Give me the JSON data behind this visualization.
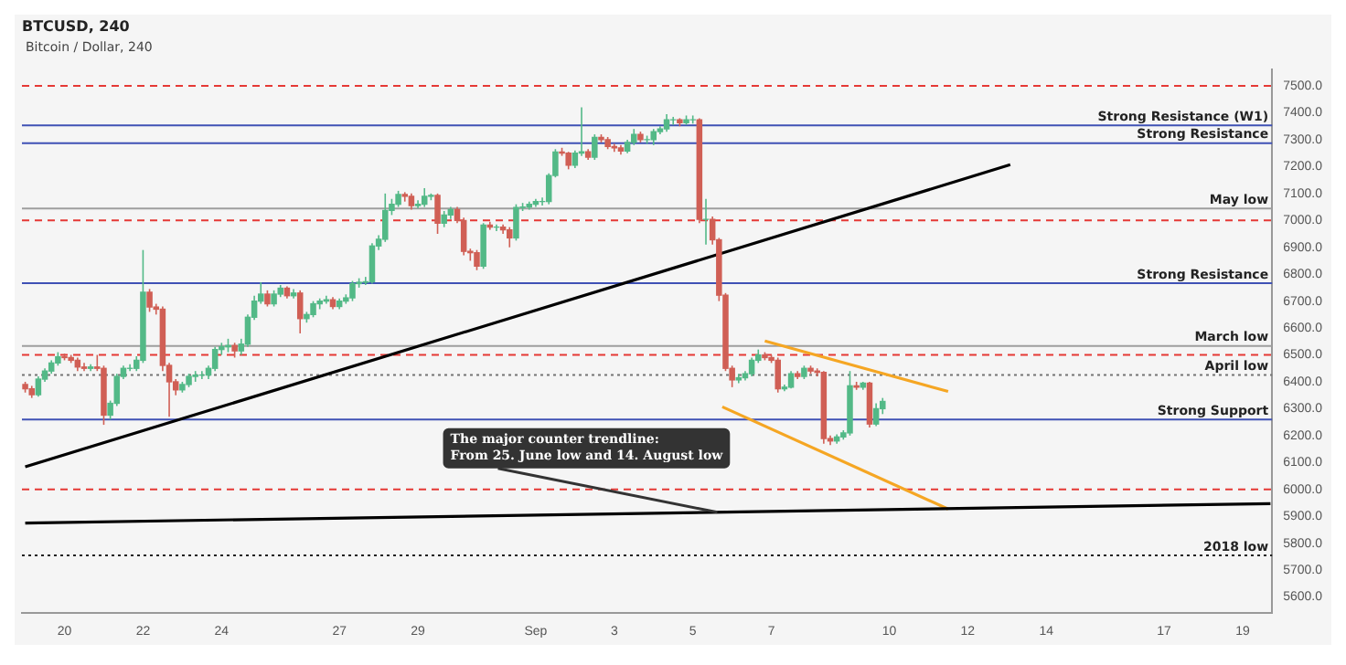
{
  "chart_data": {
    "type": "candlestick",
    "title": "Bitcoin / Dollar, 240",
    "subtitle": "BTCUSD, 240",
    "x": [
      "2018-08-19T00:00",
      "2018-08-19T04:00",
      "2018-08-19T08:00",
      "2018-08-19T12:00",
      "2018-08-19T16:00",
      "2018-08-19T20:00",
      "2018-08-20T00:00",
      "2018-08-20T04:00",
      "2018-08-20T08:00",
      "2018-08-20T12:00",
      "2018-08-20T16:00",
      "2018-08-20T20:00",
      "2018-08-21T00:00",
      "2018-08-21T04:00",
      "2018-08-21T08:00",
      "2018-08-21T12:00",
      "2018-08-21T16:00",
      "2018-08-21T20:00",
      "2018-08-22T00:00",
      "2018-08-22T04:00",
      "2018-08-22T08:00",
      "2018-08-22T12:00",
      "2018-08-22T16:00",
      "2018-08-22T20:00",
      "2018-08-23T00:00",
      "2018-08-23T04:00",
      "2018-08-23T08:00",
      "2018-08-23T12:00",
      "2018-08-23T16:00",
      "2018-08-23T20:00",
      "2018-08-24T00:00",
      "2018-08-24T04:00",
      "2018-08-24T08:00",
      "2018-08-24T12:00",
      "2018-08-24T16:00",
      "2018-08-24T20:00",
      "2018-08-25T00:00",
      "2018-08-25T04:00",
      "2018-08-25T08:00",
      "2018-08-25T12:00",
      "2018-08-25T16:00",
      "2018-08-25T20:00",
      "2018-08-26T00:00",
      "2018-08-26T04:00",
      "2018-08-26T08:00",
      "2018-08-26T12:00",
      "2018-08-26T16:00",
      "2018-08-26T20:00",
      "2018-08-27T00:00",
      "2018-08-27T04:00",
      "2018-08-27T08:00",
      "2018-08-27T12:00",
      "2018-08-27T16:00",
      "2018-08-27T20:00",
      "2018-08-28T00:00",
      "2018-08-28T04:00",
      "2018-08-28T08:00",
      "2018-08-28T12:00",
      "2018-08-28T16:00",
      "2018-08-28T20:00",
      "2018-08-29T00:00",
      "2018-08-29T04:00",
      "2018-08-29T08:00",
      "2018-08-29T12:00",
      "2018-08-29T16:00",
      "2018-08-29T20:00",
      "2018-08-30T00:00",
      "2018-08-30T04:00",
      "2018-08-30T08:00",
      "2018-08-30T12:00",
      "2018-08-30T16:00",
      "2018-08-30T20:00",
      "2018-08-31T00:00",
      "2018-08-31T04:00",
      "2018-08-31T08:00",
      "2018-08-31T12:00",
      "2018-08-31T16:00",
      "2018-08-31T20:00",
      "2018-09-01T00:00",
      "2018-09-01T04:00",
      "2018-09-01T08:00",
      "2018-09-01T12:00",
      "2018-09-01T16:00",
      "2018-09-01T20:00",
      "2018-09-02T00:00",
      "2018-09-02T04:00",
      "2018-09-02T08:00",
      "2018-09-02T12:00",
      "2018-09-02T16:00",
      "2018-09-02T20:00",
      "2018-09-03T00:00",
      "2018-09-03T04:00",
      "2018-09-03T08:00",
      "2018-09-03T12:00",
      "2018-09-03T16:00",
      "2018-09-03T20:00",
      "2018-09-04T00:00",
      "2018-09-04T04:00",
      "2018-09-04T08:00",
      "2018-09-04T12:00",
      "2018-09-04T16:00",
      "2018-09-04T20:00",
      "2018-09-05T00:00",
      "2018-09-05T04:00",
      "2018-09-05T08:00",
      "2018-09-05T12:00",
      "2018-09-05T16:00",
      "2018-09-05T20:00",
      "2018-09-06T00:00",
      "2018-09-06T04:00",
      "2018-09-06T08:00",
      "2018-09-06T12:00",
      "2018-09-06T16:00",
      "2018-09-06T20:00",
      "2018-09-07T00:00",
      "2018-09-07T04:00",
      "2018-09-07T08:00",
      "2018-09-07T12:00",
      "2018-09-07T16:00",
      "2018-09-07T20:00",
      "2018-09-08T00:00",
      "2018-09-08T04:00",
      "2018-09-08T08:00",
      "2018-09-08T12:00",
      "2018-09-08T16:00",
      "2018-09-08T20:00",
      "2018-09-09T00:00",
      "2018-09-09T04:00",
      "2018-09-09T08:00",
      "2018-09-09T12:00",
      "2018-09-09T16:00",
      "2018-09-09T20:00"
    ],
    "ohlc": [
      [
        6390,
        6400,
        6360,
        6374
      ],
      [
        6374,
        6385,
        6340,
        6352
      ],
      [
        6352,
        6420,
        6345,
        6410
      ],
      [
        6410,
        6450,
        6400,
        6440
      ],
      [
        6440,
        6480,
        6430,
        6470
      ],
      [
        6470,
        6510,
        6460,
        6493
      ],
      [
        6493,
        6505,
        6480,
        6490
      ],
      [
        6490,
        6500,
        6470,
        6480
      ],
      [
        6480,
        6490,
        6440,
        6455
      ],
      [
        6455,
        6470,
        6440,
        6450
      ],
      [
        6450,
        6465,
        6440,
        6455
      ],
      [
        6455,
        6500,
        6440,
        6450
      ],
      [
        6450,
        6460,
        6240,
        6276
      ],
      [
        6276,
        6330,
        6260,
        6320
      ],
      [
        6320,
        6430,
        6310,
        6420
      ],
      [
        6420,
        6460,
        6410,
        6450
      ],
      [
        6450,
        6465,
        6440,
        6450
      ],
      [
        6450,
        6495,
        6440,
        6480
      ],
      [
        6480,
        6890,
        6470,
        6733
      ],
      [
        6733,
        6745,
        6660,
        6678
      ],
      [
        6678,
        6690,
        6650,
        6670
      ],
      [
        6670,
        6680,
        6440,
        6461
      ],
      [
        6461,
        6470,
        6270,
        6400
      ],
      [
        6400,
        6410,
        6350,
        6370
      ],
      [
        6370,
        6400,
        6360,
        6390
      ],
      [
        6390,
        6430,
        6380,
        6420
      ],
      [
        6420,
        6440,
        6400,
        6425
      ],
      [
        6425,
        6440,
        6410,
        6425
      ],
      [
        6425,
        6460,
        6410,
        6450
      ],
      [
        6450,
        6530,
        6440,
        6520
      ],
      [
        6520,
        6545,
        6500,
        6530
      ],
      [
        6530,
        6560,
        6510,
        6535
      ],
      [
        6535,
        6545,
        6490,
        6515
      ],
      [
        6515,
        6560,
        6500,
        6540
      ],
      [
        6540,
        6650,
        6530,
        6640
      ],
      [
        6640,
        6720,
        6630,
        6700
      ],
      [
        6700,
        6770,
        6690,
        6726
      ],
      [
        6726,
        6740,
        6680,
        6690
      ],
      [
        6690,
        6740,
        6680,
        6726
      ],
      [
        6726,
        6760,
        6715,
        6748
      ],
      [
        6748,
        6755,
        6710,
        6720
      ],
      [
        6720,
        6745,
        6710,
        6730
      ],
      [
        6730,
        6740,
        6580,
        6635
      ],
      [
        6635,
        6660,
        6620,
        6650
      ],
      [
        6650,
        6700,
        6640,
        6690
      ],
      [
        6690,
        6710,
        6670,
        6700
      ],
      [
        6700,
        6720,
        6690,
        6705
      ],
      [
        6705,
        6715,
        6670,
        6680
      ],
      [
        6680,
        6710,
        6670,
        6700
      ],
      [
        6700,
        6725,
        6690,
        6712
      ],
      [
        6712,
        6775,
        6700,
        6765
      ],
      [
        6765,
        6785,
        6750,
        6770
      ],
      [
        6770,
        6790,
        6760,
        6772
      ],
      [
        6772,
        6915,
        6765,
        6905
      ],
      [
        6905,
        6945,
        6890,
        6930
      ],
      [
        6930,
        7100,
        6920,
        7037
      ],
      [
        7037,
        7080,
        7020,
        7060
      ],
      [
        7060,
        7110,
        7050,
        7096
      ],
      [
        7096,
        7105,
        7070,
        7090
      ],
      [
        7090,
        7100,
        7040,
        7055
      ],
      [
        7055,
        7075,
        7045,
        7060
      ],
      [
        7060,
        7120,
        7050,
        7090
      ],
      [
        7090,
        7100,
        7075,
        7093
      ],
      [
        7093,
        7100,
        6950,
        6990
      ],
      [
        6990,
        7035,
        6975,
        7020
      ],
      [
        7020,
        7050,
        7005,
        7040
      ],
      [
        7040,
        7050,
        6990,
        7000
      ],
      [
        7000,
        7010,
        6870,
        6885
      ],
      [
        6885,
        6895,
        6850,
        6880
      ],
      [
        6880,
        6890,
        6815,
        6830
      ],
      [
        6830,
        6990,
        6820,
        6983
      ],
      [
        6983,
        6995,
        6965,
        6975
      ],
      [
        6975,
        6985,
        6960,
        6975
      ],
      [
        6975,
        6985,
        6950,
        6965
      ],
      [
        6965,
        6975,
        6900,
        6935
      ],
      [
        6935,
        7060,
        6925,
        7048
      ],
      [
        7048,
        7065,
        7035,
        7050
      ],
      [
        7050,
        7070,
        7040,
        7060
      ],
      [
        7060,
        7080,
        7050,
        7070
      ],
      [
        7070,
        7085,
        7055,
        7070
      ],
      [
        7070,
        7175,
        7060,
        7167
      ],
      [
        7167,
        7265,
        7160,
        7254
      ],
      [
        7254,
        7270,
        7240,
        7250
      ],
      [
        7250,
        7255,
        7190,
        7205
      ],
      [
        7205,
        7260,
        7195,
        7250
      ],
      [
        7250,
        7420,
        7240,
        7255
      ],
      [
        7255,
        7265,
        7225,
        7235
      ],
      [
        7235,
        7320,
        7225,
        7309
      ],
      [
        7309,
        7320,
        7290,
        7300
      ],
      [
        7300,
        7310,
        7265,
        7275
      ],
      [
        7275,
        7285,
        7255,
        7270
      ],
      [
        7270,
        7280,
        7245,
        7258
      ],
      [
        7258,
        7300,
        7250,
        7290
      ],
      [
        7290,
        7340,
        7280,
        7320
      ],
      [
        7320,
        7330,
        7290,
        7300
      ],
      [
        7300,
        7315,
        7285,
        7300
      ],
      [
        7300,
        7340,
        7280,
        7330
      ],
      [
        7330,
        7350,
        7320,
        7340
      ],
      [
        7340,
        7395,
        7330,
        7374
      ],
      [
        7374,
        7385,
        7355,
        7374
      ],
      [
        7374,
        7380,
        7350,
        7363
      ],
      [
        7363,
        7390,
        7355,
        7374
      ],
      [
        7374,
        7390,
        7360,
        7374
      ],
      [
        7374,
        7380,
        6990,
        7004
      ],
      [
        7004,
        7080,
        6910,
        7004
      ],
      [
        7004,
        7015,
        6910,
        6928
      ],
      [
        6928,
        6935,
        6700,
        6722
      ],
      [
        6722,
        6730,
        6440,
        6450
      ],
      [
        6450,
        6460,
        6380,
        6407
      ],
      [
        6407,
        6430,
        6395,
        6415
      ],
      [
        6415,
        6440,
        6405,
        6430
      ],
      [
        6430,
        6490,
        6420,
        6480
      ],
      [
        6480,
        6520,
        6470,
        6500
      ],
      [
        6500,
        6510,
        6480,
        6490
      ],
      [
        6490,
        6500,
        6470,
        6480
      ],
      [
        6480,
        6490,
        6360,
        6374
      ],
      [
        6374,
        6390,
        6365,
        6380
      ],
      [
        6380,
        6440,
        6375,
        6430
      ],
      [
        6430,
        6440,
        6410,
        6420
      ],
      [
        6420,
        6460,
        6410,
        6450
      ],
      [
        6450,
        6460,
        6430,
        6440
      ],
      [
        6440,
        6450,
        6420,
        6435
      ],
      [
        6435,
        6440,
        6170,
        6189
      ],
      [
        6189,
        6200,
        6165,
        6180
      ],
      [
        6180,
        6205,
        6170,
        6195
      ],
      [
        6195,
        6220,
        6185,
        6210
      ],
      [
        6210,
        6440,
        6200,
        6385
      ],
      [
        6385,
        6400,
        6370,
        6380
      ],
      [
        6380,
        6400,
        6370,
        6395
      ],
      [
        6395,
        6400,
        6230,
        6243
      ],
      [
        6243,
        6320,
        6235,
        6300
      ],
      [
        6300,
        6340,
        6280,
        6327
      ]
    ],
    "colors": [
      "#d05f55",
      "#d05f55",
      "#53b987",
      "#53b987",
      "#53b987",
      "#53b987",
      "#d05f55",
      "#d05f55",
      "#d05f55",
      "#d05f55",
      "#53b987",
      "#d05f55",
      "#d05f55",
      "#53b987",
      "#53b987",
      "#53b987",
      "#53b987",
      "#53b987",
      "#53b987",
      "#d05f55",
      "#d05f55",
      "#d05f55",
      "#d05f55",
      "#d05f55",
      "#53b987",
      "#53b987",
      "#53b987",
      "#53b987",
      "#53b987",
      "#53b987",
      "#53b987",
      "#53b987",
      "#d05f55",
      "#53b987",
      "#53b987",
      "#53b987",
      "#53b987",
      "#d05f55",
      "#53b987",
      "#53b987",
      "#d05f55",
      "#53b987",
      "#d05f55",
      "#53b987",
      "#53b987",
      "#53b987",
      "#53b987",
      "#d05f55",
      "#53b987",
      "#53b987",
      "#53b987",
      "#53b987",
      "#53b987",
      "#53b987",
      "#53b987",
      "#53b987",
      "#53b987",
      "#53b987",
      "#d05f55",
      "#d05f55",
      "#53b987",
      "#53b987",
      "#53b987",
      "#d05f55",
      "#53b987",
      "#53b987",
      "#d05f55",
      "#d05f55",
      "#d05f55",
      "#d05f55",
      "#53b987",
      "#d05f55",
      "#53b987",
      "#d05f55",
      "#d05f55",
      "#53b987",
      "#53b987",
      "#53b987",
      "#53b987",
      "#53b987",
      "#53b987",
      "#53b987",
      "#d05f55",
      "#d05f55",
      "#53b987",
      "#53b987",
      "#d05f55",
      "#53b987",
      "#d05f55",
      "#d05f55",
      "#d05f55",
      "#d05f55",
      "#53b987",
      "#53b987",
      "#d05f55",
      "#53b987",
      "#53b987",
      "#53b987",
      "#53b987",
      "#53b987",
      "#d05f55",
      "#53b987",
      "#53b987",
      "#d05f55",
      "#53b987",
      "#d05f55",
      "#d05f55",
      "#d05f55",
      "#d05f55",
      "#53b987",
      "#53b987",
      "#53b987",
      "#53b987",
      "#d05f55",
      "#d05f55",
      "#d05f55",
      "#53b987",
      "#53b987",
      "#d05f55",
      "#53b987",
      "#d05f55",
      "#d05f55",
      "#d05f55",
      "#d05f55",
      "#53b987",
      "#53b987",
      "#53b987",
      "#d05f55",
      "#53b987",
      "#d05f55",
      "#53b987",
      "#53b987"
    ],
    "series": [
      {
        "type": "line",
        "color": "#000000",
        "x": [
          "2018-08-19T00:00",
          "2018-09-13T02:00"
        ],
        "values": [
          6084,
          7207
        ]
      },
      {
        "type": "line",
        "color": "#000000",
        "x": [
          "2018-08-19T00:00",
          "2018-09-19T17:00"
        ],
        "values": [
          5875,
          5947
        ]
      },
      {
        "type": "line",
        "color": "#f5a623",
        "x": [
          "2018-09-06T20:00",
          "2018-09-11T12:00"
        ],
        "values": [
          6552,
          6364
        ]
      },
      {
        "type": "line",
        "color": "#f5a623",
        "x": [
          "2018-09-05T18:00",
          "2018-09-11T12:00"
        ],
        "values": [
          6307,
          5927
        ]
      }
    ],
    "ref_lines": [
      {
        "axis": "y",
        "value": 7500,
        "label": null,
        "color": "#e53935",
        "line_style": "dashed"
      },
      {
        "axis": "y",
        "value": 7353,
        "label": "Strong Resistance (W1)",
        "color": "#3f51b5",
        "line_style": "solid"
      },
      {
        "axis": "y",
        "value": 7287,
        "label": "Strong Resistance",
        "color": "#3f51b5",
        "line_style": "solid"
      },
      {
        "axis": "y",
        "value": 7044,
        "label": "May low",
        "color": "#9e9e9e",
        "line_style": "solid"
      },
      {
        "axis": "y",
        "value": 7000,
        "label": null,
        "color": "#e53935",
        "line_style": "dashed"
      },
      {
        "axis": "y",
        "value": 6767,
        "label": "Strong Resistance",
        "color": "#3f51b5",
        "line_style": "solid"
      },
      {
        "axis": "y",
        "value": 6533,
        "label": "March low",
        "color": "#9e9e9e",
        "line_style": "solid"
      },
      {
        "axis": "y",
        "value": 6500,
        "label": null,
        "color": "#e53935",
        "line_style": "dashed"
      },
      {
        "axis": "y",
        "value": 6425,
        "label": "April low",
        "color": "#757575",
        "line_style": "dotted"
      },
      {
        "axis": "y",
        "value": 6260,
        "label": "Strong Support",
        "color": "#3f51b5",
        "line_style": "solid"
      },
      {
        "axis": "y",
        "value": 6000,
        "label": null,
        "color": "#e53935",
        "line_style": "dashed"
      },
      {
        "axis": "y",
        "value": 5755,
        "label": "2018 low",
        "color": "#212121",
        "line_style": "dotted"
      }
    ],
    "annotations": [
      {
        "text": "The major counter trendline:\nFrom 25. June low and 14. August low",
        "x": "2018-09-05T15:00",
        "y": 5915
      }
    ],
    "xlim": [
      "2018-08-18T22:00",
      "2018-09-19T18:00"
    ],
    "xticks": [
      {
        "value": "2018-08-20",
        "label": "20"
      },
      {
        "value": "2018-08-22",
        "label": "22"
      },
      {
        "value": "2018-08-24",
        "label": "24"
      },
      {
        "value": "2018-08-27",
        "label": "27"
      },
      {
        "value": "2018-08-29",
        "label": "29"
      },
      {
        "value": "2018-09-01",
        "label": "Sep"
      },
      {
        "value": "2018-09-03",
        "label": "3"
      },
      {
        "value": "2018-09-05",
        "label": "5"
      },
      {
        "value": "2018-09-07",
        "label": "7"
      },
      {
        "value": "2018-09-10",
        "label": "10"
      },
      {
        "value": "2018-09-12",
        "label": "12"
      },
      {
        "value": "2018-09-14",
        "label": "14"
      },
      {
        "value": "2018-09-17",
        "label": "17"
      },
      {
        "value": "2018-09-19",
        "label": "19"
      }
    ],
    "ylim": [
      5540,
      7560
    ],
    "yticks": [
      {
        "value": 5600,
        "label": "5600.0"
      },
      {
        "value": 5700,
        "label": "5700.0"
      },
      {
        "value": 5800,
        "label": "5800.0"
      },
      {
        "value": 5900,
        "label": "5900.0"
      },
      {
        "value": 6000,
        "label": "6000.0"
      },
      {
        "value": 6100,
        "label": "6100.0"
      },
      {
        "value": 6200,
        "label": "6200.0"
      },
      {
        "value": 6300,
        "label": "6300.0"
      },
      {
        "value": 6400,
        "label": "6400.0"
      },
      {
        "value": 6500,
        "label": "6500.0"
      },
      {
        "value": 6600,
        "label": "6600.0"
      },
      {
        "value": 6700,
        "label": "6700.0"
      },
      {
        "value": 6800,
        "label": "6800.0"
      },
      {
        "value": 6900,
        "label": "6900.0"
      },
      {
        "value": 7000,
        "label": "7000.0"
      },
      {
        "value": 7100,
        "label": "7100.0"
      },
      {
        "value": 7200,
        "label": "7200.0"
      },
      {
        "value": 7300,
        "label": "7300.0"
      },
      {
        "value": 7400,
        "label": "7400.0"
      },
      {
        "value": 7500,
        "label": "7500.0"
      }
    ],
    "grid": false,
    "legend": false
  }
}
